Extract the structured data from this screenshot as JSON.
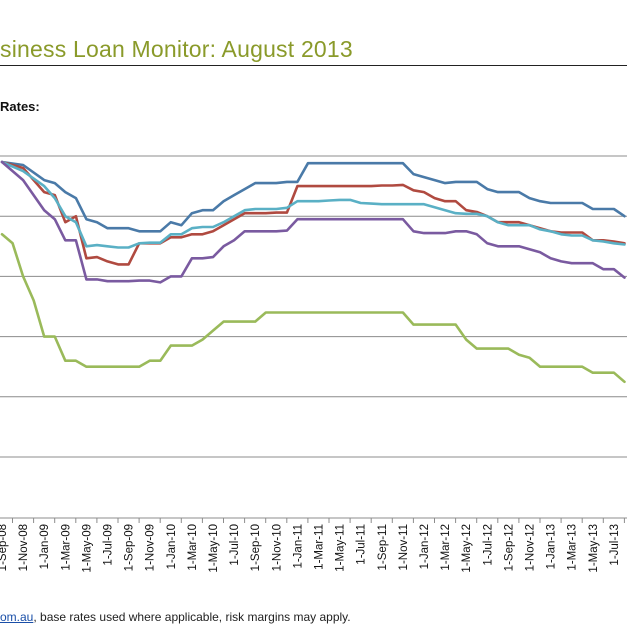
{
  "header": {
    "title": "siness Loan Monitor: August 2013",
    "subtitle": "Rates:"
  },
  "footer": {
    "link_text": "om.au",
    "text": ", base rates used where applicable, risk margins may apply."
  },
  "chart_data": {
    "type": "line",
    "title": "",
    "xlabel": "",
    "ylabel": "",
    "x_tick_labels": [
      "1-Sep-08",
      "1-Nov-08",
      "1-Jan-09",
      "1-Mar-09",
      "1-May-09",
      "1-Jul-09",
      "1-Sep-09",
      "1-Nov-09",
      "1-Jan-10",
      "1-Mar-10",
      "1-May-10",
      "1-Jul-10",
      "1-Sep-10",
      "1-Nov-10",
      "1-Jan-11",
      "1-Mar-11",
      "1-May-11",
      "1-Jul-11",
      "1-Sep-11",
      "1-Nov-11",
      "1-Jan-12",
      "1-Mar-12",
      "1-May-12",
      "1-Jul-12",
      "1-Sep-12",
      "1-Nov-12",
      "1-Jan-13",
      "1-Mar-13",
      "1-May-13",
      "1-Jul-13"
    ],
    "gridlines": 6,
    "grid": true,
    "legend": "none",
    "series": [
      {
        "color": "#4a7aa8",
        "values": [
          [
            0,
            9.9
          ],
          [
            2,
            9.85
          ],
          [
            4,
            9.6
          ],
          [
            5,
            9.55
          ],
          [
            6,
            9.4
          ],
          [
            7,
            9.3
          ],
          [
            8,
            8.95
          ],
          [
            9,
            8.9
          ],
          [
            10,
            8.8
          ],
          [
            11,
            8.8
          ],
          [
            12,
            8.8
          ],
          [
            13,
            8.75
          ],
          [
            14,
            8.75
          ],
          [
            15,
            8.75
          ],
          [
            16,
            8.9
          ],
          [
            17,
            8.85
          ],
          [
            18,
            9.05
          ],
          [
            19,
            9.1
          ],
          [
            20,
            9.1
          ],
          [
            21,
            9.25
          ],
          [
            22,
            9.35
          ],
          [
            23,
            9.45
          ],
          [
            24,
            9.55
          ],
          [
            25,
            9.55
          ],
          [
            26,
            9.55
          ],
          [
            27,
            9.57
          ],
          [
            28,
            9.57
          ],
          [
            29,
            9.88
          ],
          [
            30,
            9.88
          ],
          [
            31,
            9.88
          ],
          [
            32,
            9.88
          ],
          [
            33,
            9.88
          ],
          [
            34,
            9.88
          ],
          [
            35,
            9.88
          ],
          [
            36,
            9.88
          ],
          [
            37,
            9.88
          ],
          [
            38,
            9.88
          ],
          [
            39,
            9.7
          ],
          [
            40,
            9.65
          ],
          [
            41,
            9.6
          ],
          [
            42,
            9.55
          ],
          [
            43,
            9.57
          ],
          [
            44,
            9.57
          ],
          [
            45,
            9.57
          ],
          [
            46,
            9.45
          ],
          [
            47,
            9.4
          ],
          [
            48,
            9.4
          ],
          [
            49,
            9.4
          ],
          [
            50,
            9.3
          ],
          [
            51,
            9.25
          ],
          [
            52,
            9.22
          ],
          [
            53,
            9.22
          ],
          [
            54,
            9.22
          ],
          [
            55,
            9.22
          ],
          [
            56,
            9.12
          ],
          [
            57,
            9.12
          ],
          [
            58,
            9.12
          ],
          [
            59,
            9.0
          ]
        ]
      },
      {
        "color": "#b04a40",
        "values": [
          [
            0,
            9.9
          ],
          [
            2,
            9.8
          ],
          [
            4,
            9.4
          ],
          [
            5,
            9.35
          ],
          [
            6,
            8.9
          ],
          [
            7,
            9.0
          ],
          [
            8,
            8.3
          ],
          [
            9,
            8.32
          ],
          [
            10,
            8.25
          ],
          [
            11,
            8.2
          ],
          [
            12,
            8.2
          ],
          [
            13,
            8.55
          ],
          [
            14,
            8.55
          ],
          [
            15,
            8.55
          ],
          [
            16,
            8.65
          ],
          [
            17,
            8.65
          ],
          [
            18,
            8.7
          ],
          [
            19,
            8.7
          ],
          [
            20,
            8.75
          ],
          [
            21,
            8.85
          ],
          [
            22,
            8.95
          ],
          [
            23,
            9.05
          ],
          [
            24,
            9.05
          ],
          [
            25,
            9.05
          ],
          [
            26,
            9.06
          ],
          [
            27,
            9.06
          ],
          [
            28,
            9.5
          ],
          [
            29,
            9.5
          ],
          [
            30,
            9.5
          ],
          [
            31,
            9.5
          ],
          [
            32,
            9.5
          ],
          [
            33,
            9.5
          ],
          [
            34,
            9.5
          ],
          [
            35,
            9.5
          ],
          [
            36,
            9.51
          ],
          [
            37,
            9.51
          ],
          [
            38,
            9.52
          ],
          [
            39,
            9.43
          ],
          [
            40,
            9.4
          ],
          [
            41,
            9.3
          ],
          [
            42,
            9.25
          ],
          [
            43,
            9.25
          ],
          [
            44,
            9.1
          ],
          [
            45,
            9.07
          ],
          [
            46,
            9.0
          ],
          [
            47,
            8.9
          ],
          [
            48,
            8.9
          ],
          [
            49,
            8.9
          ],
          [
            50,
            8.85
          ],
          [
            51,
            8.8
          ],
          [
            52,
            8.75
          ],
          [
            53,
            8.73
          ],
          [
            54,
            8.73
          ],
          [
            55,
            8.73
          ],
          [
            56,
            8.6
          ],
          [
            57,
            8.6
          ],
          [
            58,
            8.58
          ],
          [
            59,
            8.55
          ]
        ]
      },
      {
        "color": "#5ab0c5",
        "values": [
          [
            0,
            9.9
          ],
          [
            2,
            9.75
          ],
          [
            4,
            9.5
          ],
          [
            5,
            9.3
          ],
          [
            6,
            9.0
          ],
          [
            7,
            8.9
          ],
          [
            8,
            8.5
          ],
          [
            9,
            8.52
          ],
          [
            10,
            8.5
          ],
          [
            11,
            8.48
          ],
          [
            12,
            8.48
          ],
          [
            13,
            8.55
          ],
          [
            14,
            8.56
          ],
          [
            15,
            8.56
          ],
          [
            16,
            8.7
          ],
          [
            17,
            8.7
          ],
          [
            18,
            8.8
          ],
          [
            19,
            8.82
          ],
          [
            20,
            8.82
          ],
          [
            21,
            8.9
          ],
          [
            22,
            9.0
          ],
          [
            23,
            9.1
          ],
          [
            24,
            9.12
          ],
          [
            25,
            9.12
          ],
          [
            26,
            9.12
          ],
          [
            27,
            9.14
          ],
          [
            28,
            9.25
          ],
          [
            29,
            9.25
          ],
          [
            30,
            9.25
          ],
          [
            31,
            9.26
          ],
          [
            32,
            9.27
          ],
          [
            33,
            9.27
          ],
          [
            34,
            9.22
          ],
          [
            35,
            9.21
          ],
          [
            36,
            9.2
          ],
          [
            37,
            9.2
          ],
          [
            38,
            9.2
          ],
          [
            39,
            9.2
          ],
          [
            40,
            9.2
          ],
          [
            41,
            9.15
          ],
          [
            42,
            9.1
          ],
          [
            43,
            9.05
          ],
          [
            44,
            9.04
          ],
          [
            45,
            9.04
          ],
          [
            46,
            9.0
          ],
          [
            47,
            8.9
          ],
          [
            48,
            8.85
          ],
          [
            49,
            8.85
          ],
          [
            50,
            8.85
          ],
          [
            51,
            8.78
          ],
          [
            52,
            8.75
          ],
          [
            53,
            8.7
          ],
          [
            54,
            8.68
          ],
          [
            55,
            8.68
          ],
          [
            56,
            8.6
          ],
          [
            57,
            8.58
          ],
          [
            58,
            8.55
          ],
          [
            59,
            8.53
          ]
        ]
      },
      {
        "color": "#7a5aa0",
        "values": [
          [
            0,
            9.9
          ],
          [
            2,
            9.6
          ],
          [
            4,
            9.1
          ],
          [
            5,
            8.95
          ],
          [
            6,
            8.6
          ],
          [
            7,
            8.6
          ],
          [
            8,
            7.95
          ],
          [
            9,
            7.95
          ],
          [
            10,
            7.92
          ],
          [
            11,
            7.92
          ],
          [
            12,
            7.92
          ],
          [
            13,
            7.93
          ],
          [
            14,
            7.93
          ],
          [
            15,
            7.9
          ],
          [
            16,
            8.0
          ],
          [
            17,
            8.0
          ],
          [
            18,
            8.3
          ],
          [
            19,
            8.3
          ],
          [
            20,
            8.32
          ],
          [
            21,
            8.5
          ],
          [
            22,
            8.6
          ],
          [
            23,
            8.75
          ],
          [
            24,
            8.75
          ],
          [
            25,
            8.75
          ],
          [
            26,
            8.75
          ],
          [
            27,
            8.76
          ],
          [
            28,
            8.95
          ],
          [
            29,
            8.95
          ],
          [
            30,
            8.95
          ],
          [
            31,
            8.95
          ],
          [
            32,
            8.95
          ],
          [
            33,
            8.95
          ],
          [
            34,
            8.95
          ],
          [
            35,
            8.95
          ],
          [
            36,
            8.95
          ],
          [
            37,
            8.95
          ],
          [
            38,
            8.95
          ],
          [
            39,
            8.75
          ],
          [
            40,
            8.72
          ],
          [
            41,
            8.72
          ],
          [
            42,
            8.72
          ],
          [
            43,
            8.75
          ],
          [
            44,
            8.75
          ],
          [
            45,
            8.7
          ],
          [
            46,
            8.55
          ],
          [
            47,
            8.5
          ],
          [
            48,
            8.5
          ],
          [
            49,
            8.5
          ],
          [
            50,
            8.45
          ],
          [
            51,
            8.4
          ],
          [
            52,
            8.3
          ],
          [
            53,
            8.25
          ],
          [
            54,
            8.22
          ],
          [
            55,
            8.22
          ],
          [
            56,
            8.22
          ],
          [
            57,
            8.12
          ],
          [
            58,
            8.12
          ],
          [
            59,
            7.98
          ]
        ]
      },
      {
        "color": "#9aba5a",
        "values": [
          [
            0,
            8.7
          ],
          [
            1,
            8.55
          ],
          [
            2,
            8.0
          ],
          [
            3,
            7.6
          ],
          [
            4,
            7.0
          ],
          [
            5,
            7.0
          ],
          [
            6,
            6.6
          ],
          [
            7,
            6.6
          ],
          [
            8,
            6.5
          ],
          [
            9,
            6.5
          ],
          [
            10,
            6.5
          ],
          [
            11,
            6.5
          ],
          [
            12,
            6.5
          ],
          [
            13,
            6.5
          ],
          [
            14,
            6.6
          ],
          [
            15,
            6.6
          ],
          [
            16,
            6.85
          ],
          [
            17,
            6.85
          ],
          [
            18,
            6.85
          ],
          [
            19,
            6.95
          ],
          [
            20,
            7.1
          ],
          [
            21,
            7.25
          ],
          [
            22,
            7.25
          ],
          [
            23,
            7.25
          ],
          [
            24,
            7.25
          ],
          [
            25,
            7.4
          ],
          [
            26,
            7.4
          ],
          [
            27,
            7.4
          ],
          [
            28,
            7.4
          ],
          [
            29,
            7.4
          ],
          [
            30,
            7.4
          ],
          [
            31,
            7.4
          ],
          [
            32,
            7.4
          ],
          [
            33,
            7.4
          ],
          [
            34,
            7.4
          ],
          [
            35,
            7.4
          ],
          [
            36,
            7.4
          ],
          [
            37,
            7.4
          ],
          [
            38,
            7.4
          ],
          [
            39,
            7.2
          ],
          [
            40,
            7.2
          ],
          [
            41,
            7.2
          ],
          [
            42,
            7.2
          ],
          [
            43,
            7.2
          ],
          [
            44,
            6.95
          ],
          [
            45,
            6.8
          ],
          [
            46,
            6.8
          ],
          [
            47,
            6.8
          ],
          [
            48,
            6.8
          ],
          [
            49,
            6.7
          ],
          [
            50,
            6.65
          ],
          [
            51,
            6.5
          ],
          [
            52,
            6.5
          ],
          [
            53,
            6.5
          ],
          [
            54,
            6.5
          ],
          [
            55,
            6.5
          ],
          [
            56,
            6.4
          ],
          [
            57,
            6.4
          ],
          [
            58,
            6.4
          ],
          [
            59,
            6.25
          ]
        ]
      }
    ]
  }
}
